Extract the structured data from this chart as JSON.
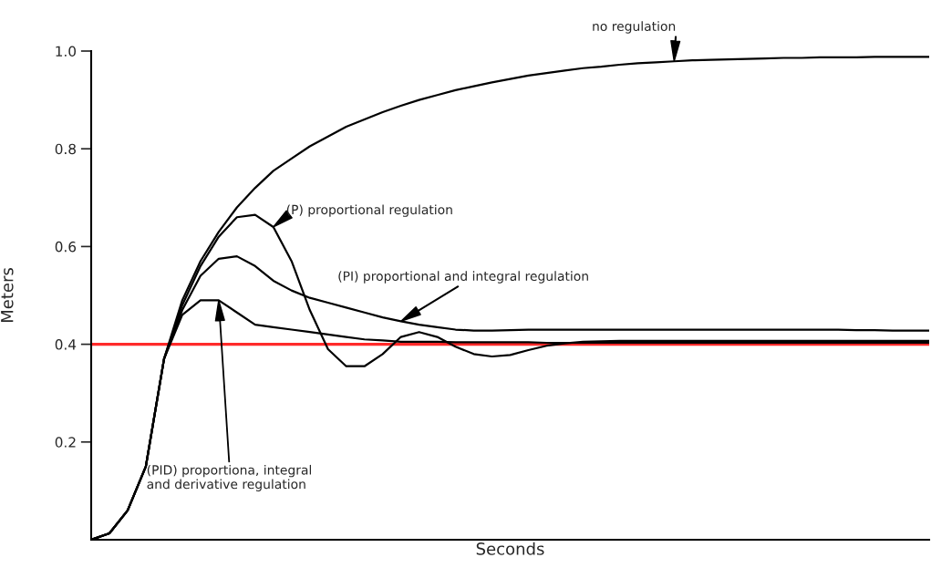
{
  "chart_data": {
    "type": "line",
    "xlabel": "Seconds",
    "ylabel": "Meters",
    "categories": [
      null,
      null,
      null,
      null,
      null,
      null,
      null,
      null,
      null,
      null,
      null,
      null,
      null,
      null,
      null,
      null,
      null,
      null,
      null,
      null,
      null,
      null,
      null,
      null,
      null,
      null,
      null,
      null,
      null,
      null,
      null,
      null,
      null,
      null,
      null,
      null,
      null,
      null,
      null,
      null,
      null,
      null,
      null,
      null,
      null,
      null,
      null
    ],
    "series": [
      {
        "name": "no regulation",
        "color": "#000000",
        "values": [
          0,
          0.013,
          0.06,
          0.15,
          0.37,
          0.49,
          0.57,
          0.63,
          0.68,
          0.72,
          0.755,
          0.78,
          0.805,
          0.825,
          0.845,
          0.86,
          0.875,
          0.888,
          0.9,
          0.91,
          0.92,
          0.928,
          0.936,
          0.943,
          0.95,
          0.955,
          0.96,
          0.965,
          0.968,
          0.972,
          0.975,
          0.977,
          0.979,
          0.981,
          0.982,
          0.983,
          0.984,
          0.985,
          0.986,
          0.986,
          0.987,
          0.987,
          0.987,
          0.988,
          0.988,
          0.988,
          0.988
        ]
      },
      {
        "name": "(P) proportional regulation",
        "color": "#000000",
        "values": [
          0,
          0.013,
          0.06,
          0.15,
          0.37,
          0.48,
          0.56,
          0.62,
          0.66,
          0.665,
          0.64,
          0.57,
          0.47,
          0.39,
          0.355,
          0.355,
          0.38,
          0.415,
          0.425,
          0.415,
          0.395,
          0.38,
          0.375,
          0.378,
          0.388,
          0.397,
          0.402,
          0.405,
          0.406,
          0.407,
          0.407,
          0.407,
          0.407,
          0.407,
          0.407,
          0.407,
          0.407,
          0.407,
          0.407,
          0.407,
          0.407,
          0.407,
          0.407,
          0.407,
          0.407,
          0.407,
          0.407
        ]
      },
      {
        "name": "(PI) proportional and integral regulation",
        "color": "#000000",
        "values": [
          0,
          0.013,
          0.06,
          0.15,
          0.37,
          0.47,
          0.54,
          0.575,
          0.58,
          0.56,
          0.53,
          0.51,
          0.495,
          0.485,
          0.475,
          0.465,
          0.455,
          0.447,
          0.44,
          0.435,
          0.43,
          0.428,
          0.428,
          0.429,
          0.43,
          0.43,
          0.43,
          0.43,
          0.43,
          0.43,
          0.43,
          0.43,
          0.43,
          0.43,
          0.43,
          0.43,
          0.43,
          0.43,
          0.43,
          0.43,
          0.43,
          0.43,
          0.429,
          0.429,
          0.428,
          0.428,
          0.428
        ]
      },
      {
        "name": "(PID) proportiona, integral\nand derivative regulation",
        "color": "#000000",
        "values": [
          0,
          0.013,
          0.06,
          0.15,
          0.37,
          0.46,
          0.49,
          0.49,
          0.465,
          0.44,
          0.435,
          0.43,
          0.425,
          0.42,
          0.415,
          0.41,
          0.408,
          0.405,
          0.405,
          0.405,
          0.404,
          0.404,
          0.404,
          0.404,
          0.404,
          0.403,
          0.403,
          0.403,
          0.403,
          0.403,
          0.403,
          0.403,
          0.403,
          0.403,
          0.403,
          0.403,
          0.403,
          0.403,
          0.403,
          0.403,
          0.403,
          0.403,
          0.403,
          0.403,
          0.403,
          0.403,
          0.403
        ]
      }
    ],
    "ylim": [
      0,
      1.0
    ],
    "yticks": [
      0.2,
      0.4,
      0.6,
      0.8,
      {
        "value": 1,
        "label": "1.0"
      }
    ],
    "tick_labels": "y",
    "ref_lines": [
      {
        "axis": "y",
        "value": 0.4,
        "color": "#ff2a2a"
      }
    ]
  }
}
